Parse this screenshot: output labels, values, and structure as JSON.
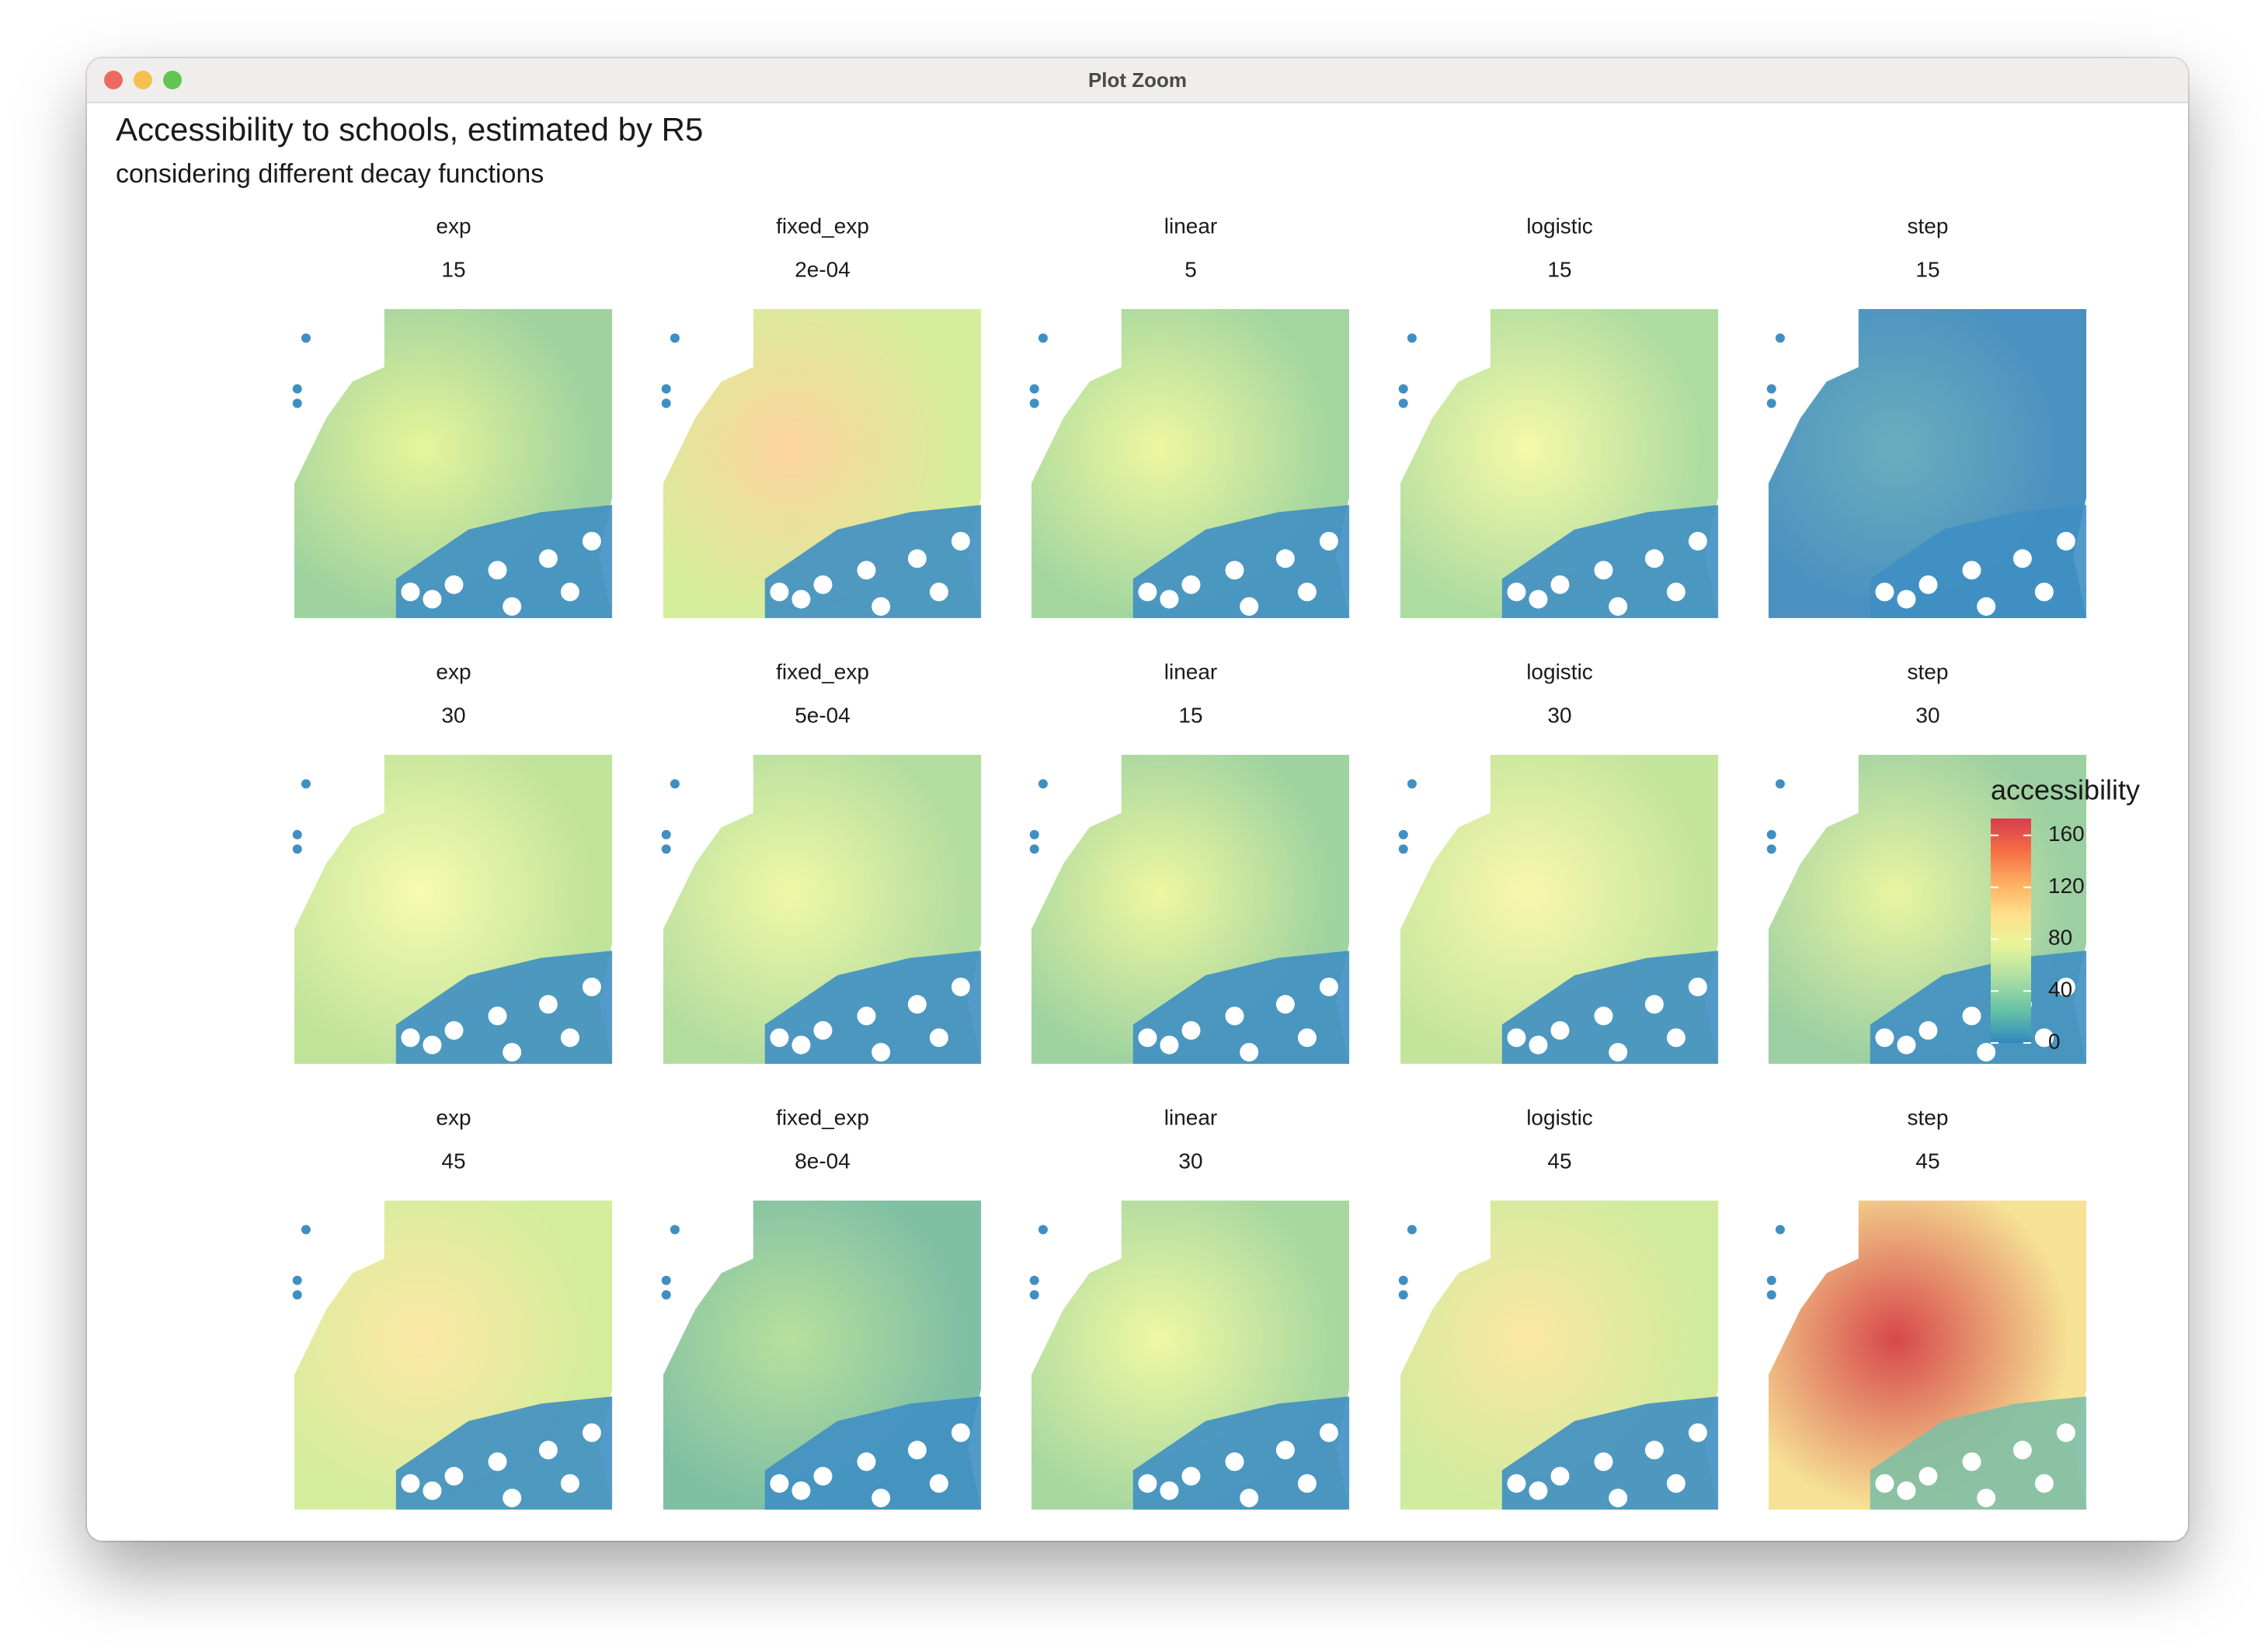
{
  "window": {
    "title": "Plot Zoom"
  },
  "plot": {
    "title": "Accessibility to schools, estimated by R5",
    "subtitle": "considering different decay functions",
    "panels": [
      {
        "decay": "exp",
        "cutoff": "15"
      },
      {
        "decay": "fixed_exp",
        "cutoff": "2e-04"
      },
      {
        "decay": "linear",
        "cutoff": "5"
      },
      {
        "decay": "logistic",
        "cutoff": "15"
      },
      {
        "decay": "step",
        "cutoff": "15"
      },
      {
        "decay": "exp",
        "cutoff": "30"
      },
      {
        "decay": "fixed_exp",
        "cutoff": "5e-04"
      },
      {
        "decay": "linear",
        "cutoff": "15"
      },
      {
        "decay": "logistic",
        "cutoff": "30"
      },
      {
        "decay": "step",
        "cutoff": "30"
      },
      {
        "decay": "exp",
        "cutoff": "45"
      },
      {
        "decay": "fixed_exp",
        "cutoff": "8e-04"
      },
      {
        "decay": "linear",
        "cutoff": "30"
      },
      {
        "decay": "logistic",
        "cutoff": "45"
      },
      {
        "decay": "step",
        "cutoff": "45"
      }
    ],
    "legend": {
      "title": "accessibility",
      "ticks": [
        0,
        40,
        80,
        120,
        160
      ],
      "limits": [
        0,
        173
      ],
      "colors": [
        "#3288bd",
        "#66c2a5",
        "#abdda4",
        "#e6f598",
        "#fee08b",
        "#fdae61",
        "#f46d43",
        "#d53e4f"
      ]
    }
  }
}
